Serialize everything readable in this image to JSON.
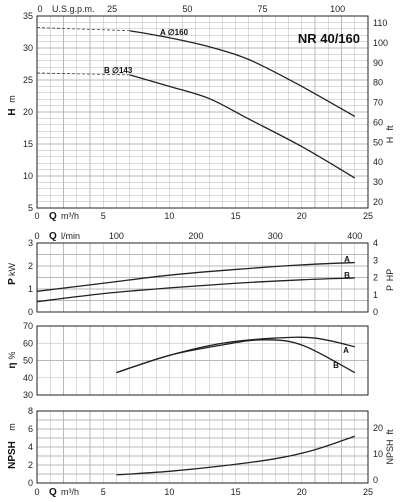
{
  "chart_data": [
    {
      "id": "head",
      "type": "line",
      "model": "NR 40/160",
      "x": {
        "label": "Q",
        "unit": "m³/h",
        "range": [
          0,
          25
        ],
        "ticks": [
          "0",
          "5",
          "10",
          "15",
          "20",
          "25"
        ]
      },
      "x_top": {
        "label": "0",
        "unit": "U.S.g.p.m.",
        "ticks": [
          "25",
          "50",
          "75",
          "100"
        ]
      },
      "y": {
        "label": "H",
        "unit": "m",
        "range": [
          5,
          35
        ],
        "ticks": [
          "5",
          "10",
          "15",
          "20",
          "25",
          "30",
          "35"
        ]
      },
      "y_right": {
        "label": "H",
        "unit": "ft",
        "ticks": [
          "20",
          "30",
          "40",
          "50",
          "60",
          "70",
          "80",
          "90",
          "100",
          "110"
        ]
      },
      "series": [
        {
          "name": "A ∅160",
          "x": [
            0,
            7,
            10,
            13,
            16,
            20,
            24
          ],
          "y": [
            33.2,
            32.7,
            31.6,
            30.2,
            28.2,
            24.0,
            19.3
          ],
          "shutoff_y": 33.2
        },
        {
          "name": "B ∅143",
          "x": [
            0,
            7,
            10,
            13,
            16,
            20,
            24
          ],
          "y": [
            26.1,
            25.8,
            24.0,
            22.1,
            18.9,
            14.6,
            9.7
          ],
          "shutoff_y": 26.1
        }
      ]
    },
    {
      "id": "power",
      "type": "line",
      "x": {
        "label": "Q",
        "unit": "l/min",
        "ticks": [
          "0",
          "100",
          "200",
          "300",
          "400"
        ]
      },
      "y": {
        "label": "P",
        "unit": "kW",
        "range": [
          0,
          3
        ],
        "ticks": [
          "0",
          "1",
          "2",
          "3"
        ]
      },
      "y_right": {
        "label": "P",
        "unit": "HP",
        "ticks": [
          "0",
          "1",
          "2",
          "3",
          "4"
        ]
      },
      "series": [
        {
          "name": "A",
          "x": [
            0,
            5,
            10,
            15,
            20,
            24
          ],
          "y": [
            0.9,
            1.25,
            1.6,
            1.85,
            2.05,
            2.15
          ]
        },
        {
          "name": "B",
          "x": [
            0,
            5,
            10,
            15,
            20,
            24
          ],
          "y": [
            0.45,
            0.8,
            1.05,
            1.25,
            1.4,
            1.48
          ]
        }
      ]
    },
    {
      "id": "efficiency",
      "type": "line",
      "y": {
        "label": "η",
        "unit": "%",
        "range": [
          30,
          70
        ],
        "ticks": [
          "30",
          "40",
          "50",
          "60",
          "70"
        ]
      },
      "series": [
        {
          "name": "A",
          "x": [
            6,
            10,
            14,
            18,
            21,
            24
          ],
          "y": [
            43,
            53,
            60,
            63,
            63,
            58
          ]
        },
        {
          "name": "B",
          "x": [
            6,
            10,
            14,
            17,
            20,
            24
          ],
          "y": [
            43,
            53,
            59,
            62,
            59,
            43
          ]
        }
      ]
    },
    {
      "id": "npsh",
      "type": "line",
      "x": {
        "label": "Q",
        "unit": "m³/h",
        "range": [
          0,
          25
        ],
        "ticks": [
          "0",
          "5",
          "10",
          "15",
          "20",
          "25"
        ]
      },
      "y": {
        "label": "NPSH",
        "unit": "m",
        "range": [
          0,
          8
        ],
        "ticks": [
          "0",
          "2",
          "4",
          "6",
          "8"
        ]
      },
      "y_right": {
        "label": "NPSH",
        "unit": "ft",
        "ticks": [
          "0",
          "10",
          "20"
        ]
      },
      "series": [
        {
          "name": "",
          "x": [
            6,
            10,
            14,
            18,
            21,
            24
          ],
          "y": [
            0.9,
            1.3,
            1.9,
            2.7,
            3.7,
            5.2
          ]
        }
      ]
    }
  ]
}
